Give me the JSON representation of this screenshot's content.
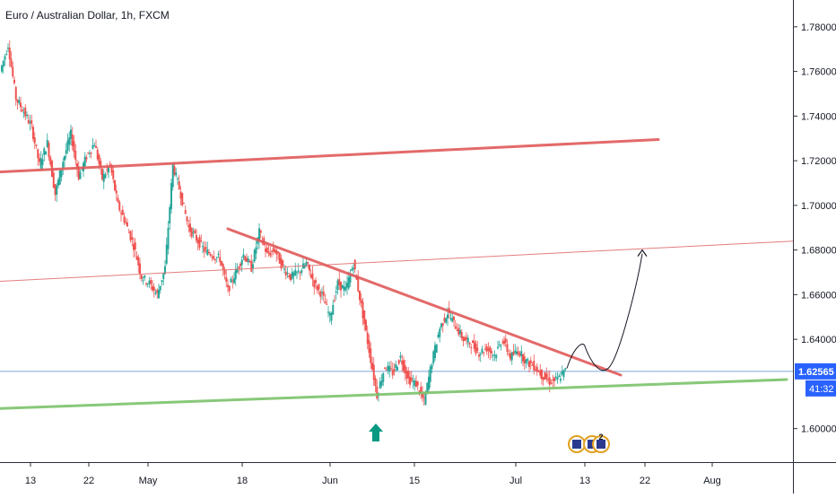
{
  "chart_data": {
    "type": "line",
    "title": "Euro / Australian Dollar, 1h, FXCM",
    "ylim": [
      1.585,
      1.792
    ],
    "grid": false,
    "y_ticks": [
      "1.78000",
      "1.76000",
      "1.74000",
      "1.72000",
      "1.70000",
      "1.68000",
      "1.66000",
      "1.64000",
      "1.60000"
    ],
    "x_ticks": [
      "13",
      "22",
      "May",
      "18",
      "Jun",
      "15",
      "Jul",
      "13",
      "22",
      "Aug"
    ],
    "current_price": "1.62565",
    "bar_countdown": "41:32",
    "series": [
      {
        "values": [
          1.76,
          1.772,
          1.748,
          1.742,
          1.735,
          1.718,
          1.728,
          1.705,
          1.72,
          1.732,
          1.713,
          1.722,
          1.728,
          1.712,
          1.718,
          1.7,
          1.692,
          1.682,
          1.668,
          1.665,
          1.66,
          1.672,
          1.718,
          1.705,
          1.69,
          1.685,
          1.68,
          1.678,
          1.676,
          1.662,
          1.67,
          1.678,
          1.672,
          1.688,
          1.678,
          1.68,
          1.672,
          1.668,
          1.67,
          1.674,
          1.665,
          1.66,
          1.65,
          1.665,
          1.662,
          1.674,
          1.655,
          1.635,
          1.615,
          1.628,
          1.625,
          1.632,
          1.622,
          1.62,
          1.612,
          1.63,
          1.645,
          1.652,
          1.646,
          1.64,
          1.638,
          1.634,
          1.636,
          1.633,
          1.64,
          1.632,
          1.635,
          1.63,
          1.628,
          1.624,
          1.621,
          1.622,
          1.626
        ]
      }
    ],
    "annotations": {
      "resistance_upper": {
        "y_start": 1.715,
        "y_end": 1.7295,
        "color": "#e05a5a"
      },
      "resistance_thin": {
        "y_start": 1.666,
        "y_end": 1.684,
        "color": "#e07070"
      },
      "descending_trend": {
        "y_start": 1.6895,
        "y_end": 1.624,
        "color": "#e05a5a"
      },
      "support": {
        "y_start": 1.609,
        "y_end": 1.622,
        "color": "#7cc36b"
      },
      "price_line_color": "#2962ff",
      "forecast_path": [
        1.627,
        1.637,
        1.63,
        1.627,
        1.68
      ],
      "arrow_color": "#089981",
      "up_color": "#26a69a",
      "down_color": "#ef5350",
      "event_badge_count": "2"
    }
  }
}
